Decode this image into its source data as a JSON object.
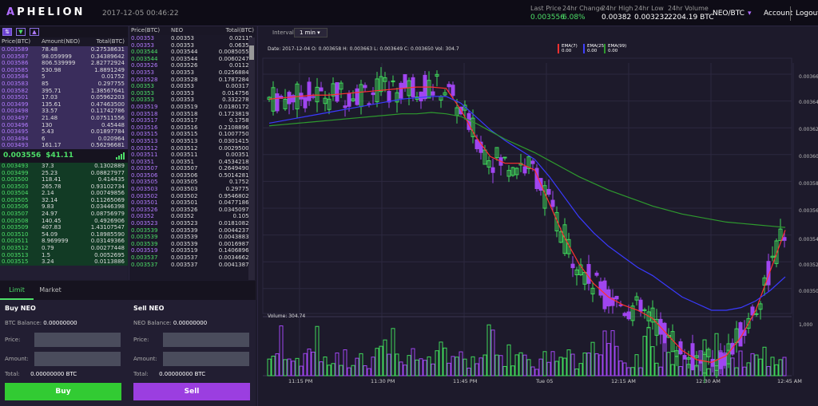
{
  "header": {
    "logo_prefix": "A",
    "logo_rest": "PHELION",
    "timestamp": "2017-12-05 00:46:22",
    "stats": [
      {
        "label": "Last Price",
        "value": "0.003556",
        "color": "#4ddf68"
      },
      {
        "label": "24hr Change",
        "value": "6.08%",
        "color": "#4ddf68"
      },
      {
        "label": "24hr High",
        "value": "0.00382",
        "color": "#ffffff"
      },
      {
        "label": "24hr Low",
        "value": "0.003232",
        "color": "#ffffff"
      },
      {
        "label": "24hr Volume",
        "value": "2204.19 BTC",
        "color": "#ffffff"
      }
    ],
    "pair": "NEO/BTC",
    "account": "Account",
    "logout": "Logout"
  },
  "orderbook": {
    "headers": [
      "Price(BTC)",
      "Amount(NEO)",
      "Total(BTC)"
    ],
    "asks": [
      [
        "0.003589",
        "78.48",
        "0.27538631"
      ],
      [
        "0.003587",
        "98.059999",
        "0.34389642"
      ],
      [
        "0.003586",
        "806.539999",
        "2.82772924"
      ],
      [
        "0.003585",
        "530.98",
        "1.8891249"
      ],
      [
        "0.003584",
        "5",
        "0.01752"
      ],
      [
        "0.003583",
        "85",
        "0.297755"
      ],
      [
        "0.003582",
        "395.71",
        "1.38567641"
      ],
      [
        "0.003501",
        "17.03",
        "0.05962203"
      ],
      [
        "0.003499",
        "135.61",
        "0.47463500"
      ],
      [
        "0.003498",
        "33.57",
        "0.11742786"
      ],
      [
        "0.003497",
        "21.48",
        "0.07511556"
      ],
      [
        "0.003496",
        "130",
        "0.45448"
      ],
      [
        "0.003495",
        "5.43",
        "0.01897784"
      ],
      [
        "0.003494",
        "6",
        "0.020964"
      ],
      [
        "0.003493",
        "161.17",
        "0.56296681"
      ]
    ],
    "last_price": "0.003556",
    "last_usd": "$41.11",
    "bids": [
      [
        "0.003493",
        "37.3",
        "0.1302889"
      ],
      [
        "0.003499",
        "25.23",
        "0.08827977"
      ],
      [
        "0.003500",
        "118.41",
        "0.414435"
      ],
      [
        "0.003503",
        "265.78",
        "0.93102734"
      ],
      [
        "0.003504",
        "2.14",
        "0.00749856"
      ],
      [
        "0.003505",
        "32.14",
        "0.11265069"
      ],
      [
        "0.003506",
        "9.83",
        "0.03446398"
      ],
      [
        "0.003507",
        "24.97",
        "0.08756979"
      ],
      [
        "0.003508",
        "140.45",
        "0.4926906"
      ],
      [
        "0.003509",
        "407.83",
        "1.43107547"
      ],
      [
        "0.003510",
        "54.09",
        "0.18985590"
      ],
      [
        "0.003511",
        "8.969999",
        "0.03149366"
      ],
      [
        "0.003512",
        "0.79",
        "0.00277448"
      ],
      [
        "0.003513",
        "1.5",
        "0.0052695"
      ],
      [
        "0.003515",
        "3.24",
        "0.0113886"
      ]
    ]
  },
  "trades": {
    "headers": [
      "Price(BTC)",
      "NEO",
      "Total(BTC)"
    ],
    "rows": [
      [
        "0.00353",
        "0.00353",
        "0.02118",
        "ask"
      ],
      [
        "0.00353",
        "0.00353",
        "0.06354",
        "ask"
      ],
      [
        "0.003544",
        "0.003544",
        "0.00850559",
        "bid"
      ],
      [
        "0.003544",
        "0.003544",
        "0.00602479",
        "bid"
      ],
      [
        "0.003526",
        "0.003526",
        "0.01128",
        "ask"
      ],
      [
        "0.00353",
        "0.00353",
        "0.02568840",
        "ask"
      ],
      [
        "0.003528",
        "0.003528",
        "0.17872848",
        "ask"
      ],
      [
        "0.00353",
        "0.00353",
        "0.003177",
        "bid"
      ],
      [
        "0.00353",
        "0.00353",
        "0.0147564",
        "bid"
      ],
      [
        "0.00353",
        "0.00353",
        "0.3322789",
        "bid"
      ],
      [
        "0.003519",
        "0.003519",
        "0.01801728",
        "ask"
      ],
      [
        "0.003518",
        "0.003518",
        "0.17238199",
        "ask"
      ],
      [
        "0.003517",
        "0.003517",
        "0.17585",
        "ask"
      ],
      [
        "0.003516",
        "0.003516",
        "0.21088968",
        "ask"
      ],
      [
        "0.003515",
        "0.003515",
        "0.10077505",
        "ask"
      ],
      [
        "0.003513",
        "0.003513",
        "0.03014154",
        "ask"
      ],
      [
        "0.003512",
        "0.003512",
        "0.00295008",
        "ask"
      ],
      [
        "0.003511",
        "0.003511",
        "0.003511",
        "ask"
      ],
      [
        "0.00351",
        "0.00351",
        "0.45342180",
        "ask"
      ],
      [
        "0.003507",
        "0.003507",
        "0.26494908",
        "ask"
      ],
      [
        "0.003506",
        "0.003506",
        "0.50142812",
        "ask"
      ],
      [
        "0.003505",
        "0.003505",
        "0.17525",
        "ask"
      ],
      [
        "0.003503",
        "0.003503",
        "0.297755",
        "ask"
      ],
      [
        "0.003502",
        "0.003502",
        "0.95468022",
        "ask"
      ],
      [
        "0.003501",
        "0.003501",
        "0.04771863",
        "ask"
      ],
      [
        "0.003526",
        "0.003526",
        "0.03450975",
        "ask"
      ],
      [
        "0.00352",
        "0.00352",
        "0.1056",
        "ask"
      ],
      [
        "0.003523",
        "0.003523",
        "0.01810821",
        "ask"
      ],
      [
        "0.003539",
        "0.003539",
        "0.00442375",
        "bid"
      ],
      [
        "0.003539",
        "0.003539",
        "0.00438836",
        "bid"
      ],
      [
        "0.003539",
        "0.003539",
        "0.00169872",
        "bid"
      ],
      [
        "0.003519",
        "0.003519",
        "0.14068962",
        "ask"
      ],
      [
        "0.003537",
        "0.003537",
        "0.00346626",
        "bid"
      ],
      [
        "0.003537",
        "0.003537",
        "0.00413879",
        "bid"
      ]
    ]
  },
  "trade_form": {
    "tabs": [
      "Limit",
      "Market"
    ],
    "buy": {
      "title": "Buy NEO",
      "balance_label": "BTC Balance:",
      "balance": "0.00000000",
      "price_label": "Price:",
      "amount_label": "Amount:",
      "total_label": "Total:",
      "total": "0.00000000 BTC",
      "button": "Buy"
    },
    "sell": {
      "title": "Sell NEO",
      "balance_label": "NEO Balance:",
      "balance": "0.00000000",
      "price_label": "Price:",
      "amount_label": "Amount:",
      "total_label": "Total:",
      "total": "0.00000000 BTC",
      "button": "Sell"
    }
  },
  "chart_panel": {
    "interval_label": "Interval:",
    "interval_value": "1 min",
    "ohlc": "Date: 2017-12-04 O: 0.003658 H: 0.003663 L: 0.003649 C: 0.003650 Vol: 304.7",
    "ema": [
      {
        "label": "EMA(7)",
        "value": "0.00",
        "color": "#ff3030"
      },
      {
        "label": "EMA(25)",
        "value": "0.00",
        "color": "#4040ff"
      },
      {
        "label": "EMA(99)",
        "value": "0.00",
        "color": "#2e9a2e"
      }
    ],
    "volume_label": "Volume: 304.74",
    "volume_axis_label": "1,000",
    "y_labels": [
      "0.00366",
      "0.00364",
      "0.00362",
      "0.00360",
      "0.00358",
      "0.00356",
      "0.00354",
      "0.00352",
      "0.00350"
    ],
    "x_labels": [
      "11:15 PM",
      "11:30 PM",
      "11:45 PM",
      "Tue 05",
      "12:15 AM",
      "12:30 AM",
      "12:45 AM"
    ]
  },
  "chart_data": {
    "type": "candlestick",
    "ylim": [
      0.00349,
      0.003675
    ],
    "ema7": [
      0.003648,
      0.003649,
      0.00365,
      0.003651,
      0.003651,
      0.003652,
      0.003653,
      0.003654,
      0.003655,
      0.003656,
      0.003657,
      0.003657,
      0.003656,
      0.00364,
      0.00362,
      0.003605,
      0.0036,
      0.0036,
      0.003595,
      0.00357,
      0.003545,
      0.003525,
      0.00351,
      0.0035,
      0.003494,
      0.00349,
      0.003484,
      0.003472,
      0.00346,
      0.003453,
      0.003451,
      0.003456,
      0.00347,
      0.00349,
      0.00352,
      0.00355
    ],
    "ema25": [
      0.00363,
      0.003632,
      0.003634,
      0.003636,
      0.003638,
      0.00364,
      0.003642,
      0.003644,
      0.003646,
      0.003648,
      0.003649,
      0.00365,
      0.00365,
      0.003645,
      0.003635,
      0.003625,
      0.003617,
      0.00361,
      0.003603,
      0.00359,
      0.003575,
      0.00356,
      0.003548,
      0.003538,
      0.00353,
      0.003522,
      0.003516,
      0.003508,
      0.0035,
      0.003495,
      0.00349,
      0.00349,
      0.003492,
      0.003497,
      0.003505,
      0.003515
    ],
    "ema99": [
      0.003628,
      0.003629,
      0.00363,
      0.003631,
      0.003632,
      0.003633,
      0.003634,
      0.003635,
      0.003636,
      0.003637,
      0.003637,
      0.003638,
      0.003637,
      0.003635,
      0.00363,
      0.003624,
      0.003618,
      0.003613,
      0.003608,
      0.003602,
      0.003596,
      0.00359,
      0.003585,
      0.00358,
      0.003576,
      0.003572,
      0.003568,
      0.003565,
      0.003562,
      0.00356,
      0.003558,
      0.003556,
      0.003555,
      0.003554,
      0.003553,
      0.003552
    ]
  }
}
